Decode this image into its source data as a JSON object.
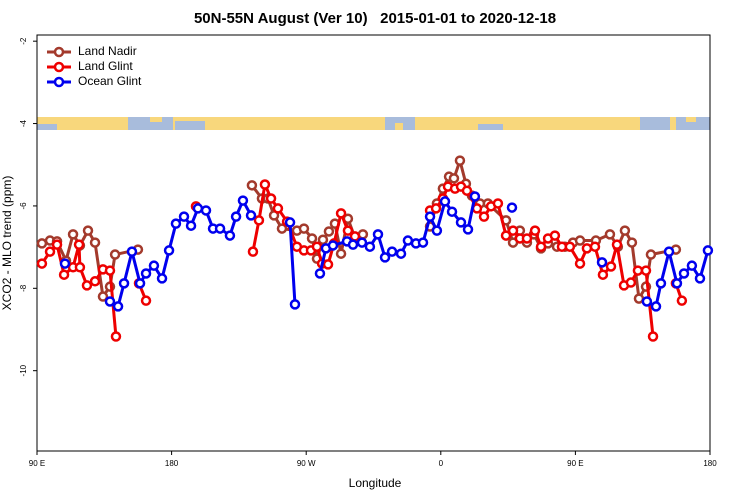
{
  "chart_data": {
    "type": "line",
    "title": "50N-55N August (Ver 10)   2015-01-01 to 2020-12-18",
    "x_label": "Longitude",
    "y_label": "XCO2 - MLO trend (ppm)",
    "xlim": [
      90,
      540
    ],
    "ylim": [
      -11.95,
      -1.85
    ],
    "xticks": [
      {
        "value": 90,
        "label": "90 E"
      },
      {
        "value": 180,
        "label": "180"
      },
      {
        "value": 270,
        "label": "90 W"
      },
      {
        "value": 360,
        "label": "0"
      },
      {
        "value": 450,
        "label": "90 E"
      },
      {
        "value": 540,
        "label": "180"
      }
    ],
    "yticks": [
      -10,
      -8,
      -6,
      -4,
      -2
    ],
    "legend": "top-left",
    "series": [
      {
        "name": "Land Nadir",
        "color": "#a33a2c",
        "x": [
          93.3,
          98.7,
          103.4,
          109.4,
          114.1,
          118.7,
          124.1,
          128.8,
          134.1,
          138.8,
          142.2,
          157.5,
          null,
          233.7,
          240.4,
          244.4,
          248.5,
          253.8,
          263.8,
          268.5,
          273.9,
          277.2,
          281.2,
          285.2,
          289.2,
          293.3,
          297.9,
          303.3,
          307.9,
          null,
          352.8,
          357.4,
          361.4,
          365.5,
          368.8,
          372.8,
          376.8,
          380.8,
          386.2,
          391.5,
          403.6,
          408.3,
          412.9,
          417.6,
          422.3,
          427.0,
          431.7,
          437.7,
          443.0,
          448.4,
          453.1,
          463.7,
          473.1,
          478.4,
          483.1,
          487.8,
          492.5,
          497.2,
          500.5,
          517.2
        ],
        "values": [
          -6.91,
          -6.84,
          -6.86,
          -7.33,
          -6.69,
          -6.96,
          -6.6,
          -6.89,
          -8.2,
          -7.96,
          -7.18,
          -7.06,
          null,
          -5.5,
          -5.82,
          -5.82,
          -6.23,
          -6.55,
          -6.6,
          -6.55,
          -6.79,
          -7.28,
          -6.82,
          -6.62,
          -6.43,
          -7.16,
          -6.31,
          -6.84,
          -6.69,
          null,
          -6.5,
          -5.94,
          -5.58,
          -5.29,
          -5.33,
          -4.9,
          -5.46,
          -5.75,
          -5.94,
          -5.94,
          -6.35,
          -6.89,
          -6.6,
          -6.89,
          -6.69,
          -7.03,
          -6.91,
          -6.99,
          -6.99,
          -6.89,
          -6.84,
          -6.84,
          -6.69,
          -6.99,
          -6.6,
          -6.89,
          -8.25,
          -7.96,
          -7.18,
          -7.06
        ]
      },
      {
        "name": "Land Glint",
        "color": "#ee0000",
        "x": [
          93.3,
          98.7,
          103.4,
          108.1,
          114.1,
          118.1,
          118.7,
          123.4,
          128.8,
          134.1,
          138.8,
          142.8,
          null,
          158.2,
          162.9,
          null,
          196.3,
          null,
          234.4,
          238.4,
          242.4,
          246.5,
          251.1,
          257.2,
          263.8,
          268.5,
          273.2,
          277.2,
          280.6,
          284.6,
          288.6,
          293.3,
          297.9,
          302.6,
          null,
          352.8,
          356.8,
          361.4,
          364.8,
          369.5,
          373.5,
          377.5,
          384.2,
          388.9,
          393.6,
          398.2,
          403.6,
          408.3,
          412.9,
          417.6,
          423.0,
          427.0,
          431.7,
          436.3,
          441.0,
          446.3,
          453.1,
          457.7,
          463.1,
          468.4,
          473.8,
          477.8,
          482.5,
          487.1,
          491.8,
          497.2,
          501.9,
          null,
          517.2,
          521.2
        ],
        "values": [
          -7.4,
          -7.11,
          -6.94,
          -7.67,
          -7.49,
          -6.94,
          -7.49,
          -7.93,
          -7.83,
          -7.54,
          -7.57,
          -9.17,
          null,
          -7.88,
          -8.3,
          null,
          -6.01,
          null,
          -7.11,
          -6.35,
          -5.48,
          -5.82,
          -6.06,
          -6.38,
          -6.99,
          -7.08,
          -7.08,
          -6.99,
          -7.4,
          -7.42,
          -6.91,
          -6.18,
          -6.6,
          -6.74,
          null,
          -6.11,
          -6.06,
          -5.82,
          -5.53,
          -5.58,
          -5.53,
          -5.63,
          -6.06,
          -6.26,
          -6.01,
          -5.94,
          -6.72,
          -6.6,
          -6.79,
          -6.79,
          -6.6,
          -6.99,
          -6.79,
          -6.72,
          -6.99,
          -6.99,
          -7.4,
          -7.03,
          -6.99,
          -7.67,
          -7.47,
          -6.94,
          -7.93,
          -7.86,
          -7.57,
          -7.57,
          -9.17,
          null,
          -7.88,
          -8.3
        ]
      },
      {
        "name": "Ocean Glint",
        "color": "#0000ee",
        "x": [
          108.7,
          null,
          138.8,
          144.2,
          148.2,
          153.5,
          158.9,
          162.9,
          168.2,
          173.6,
          178.3,
          182.9,
          188.3,
          193.0,
          197.6,
          203.0,
          207.7,
          212.4,
          219.0,
          223.1,
          227.7,
          233.1,
          null,
          259.2,
          262.5,
          null,
          279.2,
          283.2,
          287.9,
          297.3,
          301.3,
          307.3,
          312.6,
          318.0,
          322.7,
          327.4,
          333.4,
          338.0,
          343.4,
          348.1,
          352.8,
          357.4,
          362.8,
          367.5,
          373.5,
          378.2,
          382.8,
          null,
          407.6,
          null,
          467.8,
          null,
          497.8,
          503.9,
          507.2,
          512.6,
          517.9,
          522.6,
          527.9,
          533.3,
          538.6
        ],
        "values": [
          -7.4,
          null,
          -8.32,
          -8.44,
          -7.88,
          -7.11,
          -7.88,
          -7.64,
          -7.45,
          -7.76,
          -7.08,
          -6.43,
          -6.26,
          -6.48,
          -6.06,
          -6.11,
          -6.55,
          -6.55,
          -6.72,
          -6.26,
          -5.87,
          -6.23,
          null,
          -6.4,
          -8.39,
          null,
          -7.64,
          -7.03,
          -6.96,
          -6.86,
          -6.94,
          -6.89,
          -6.99,
          -6.69,
          -7.25,
          -7.11,
          -7.16,
          -6.84,
          -6.91,
          -6.89,
          -6.26,
          -6.6,
          -5.89,
          -6.14,
          -6.4,
          -6.57,
          -5.77,
          null,
          -6.04,
          null,
          -7.37,
          null,
          -8.32,
          -8.44,
          -7.88,
          -7.11,
          -7.88,
          -7.64,
          -7.45,
          -7.76,
          -7.08
        ]
      }
    ]
  }
}
